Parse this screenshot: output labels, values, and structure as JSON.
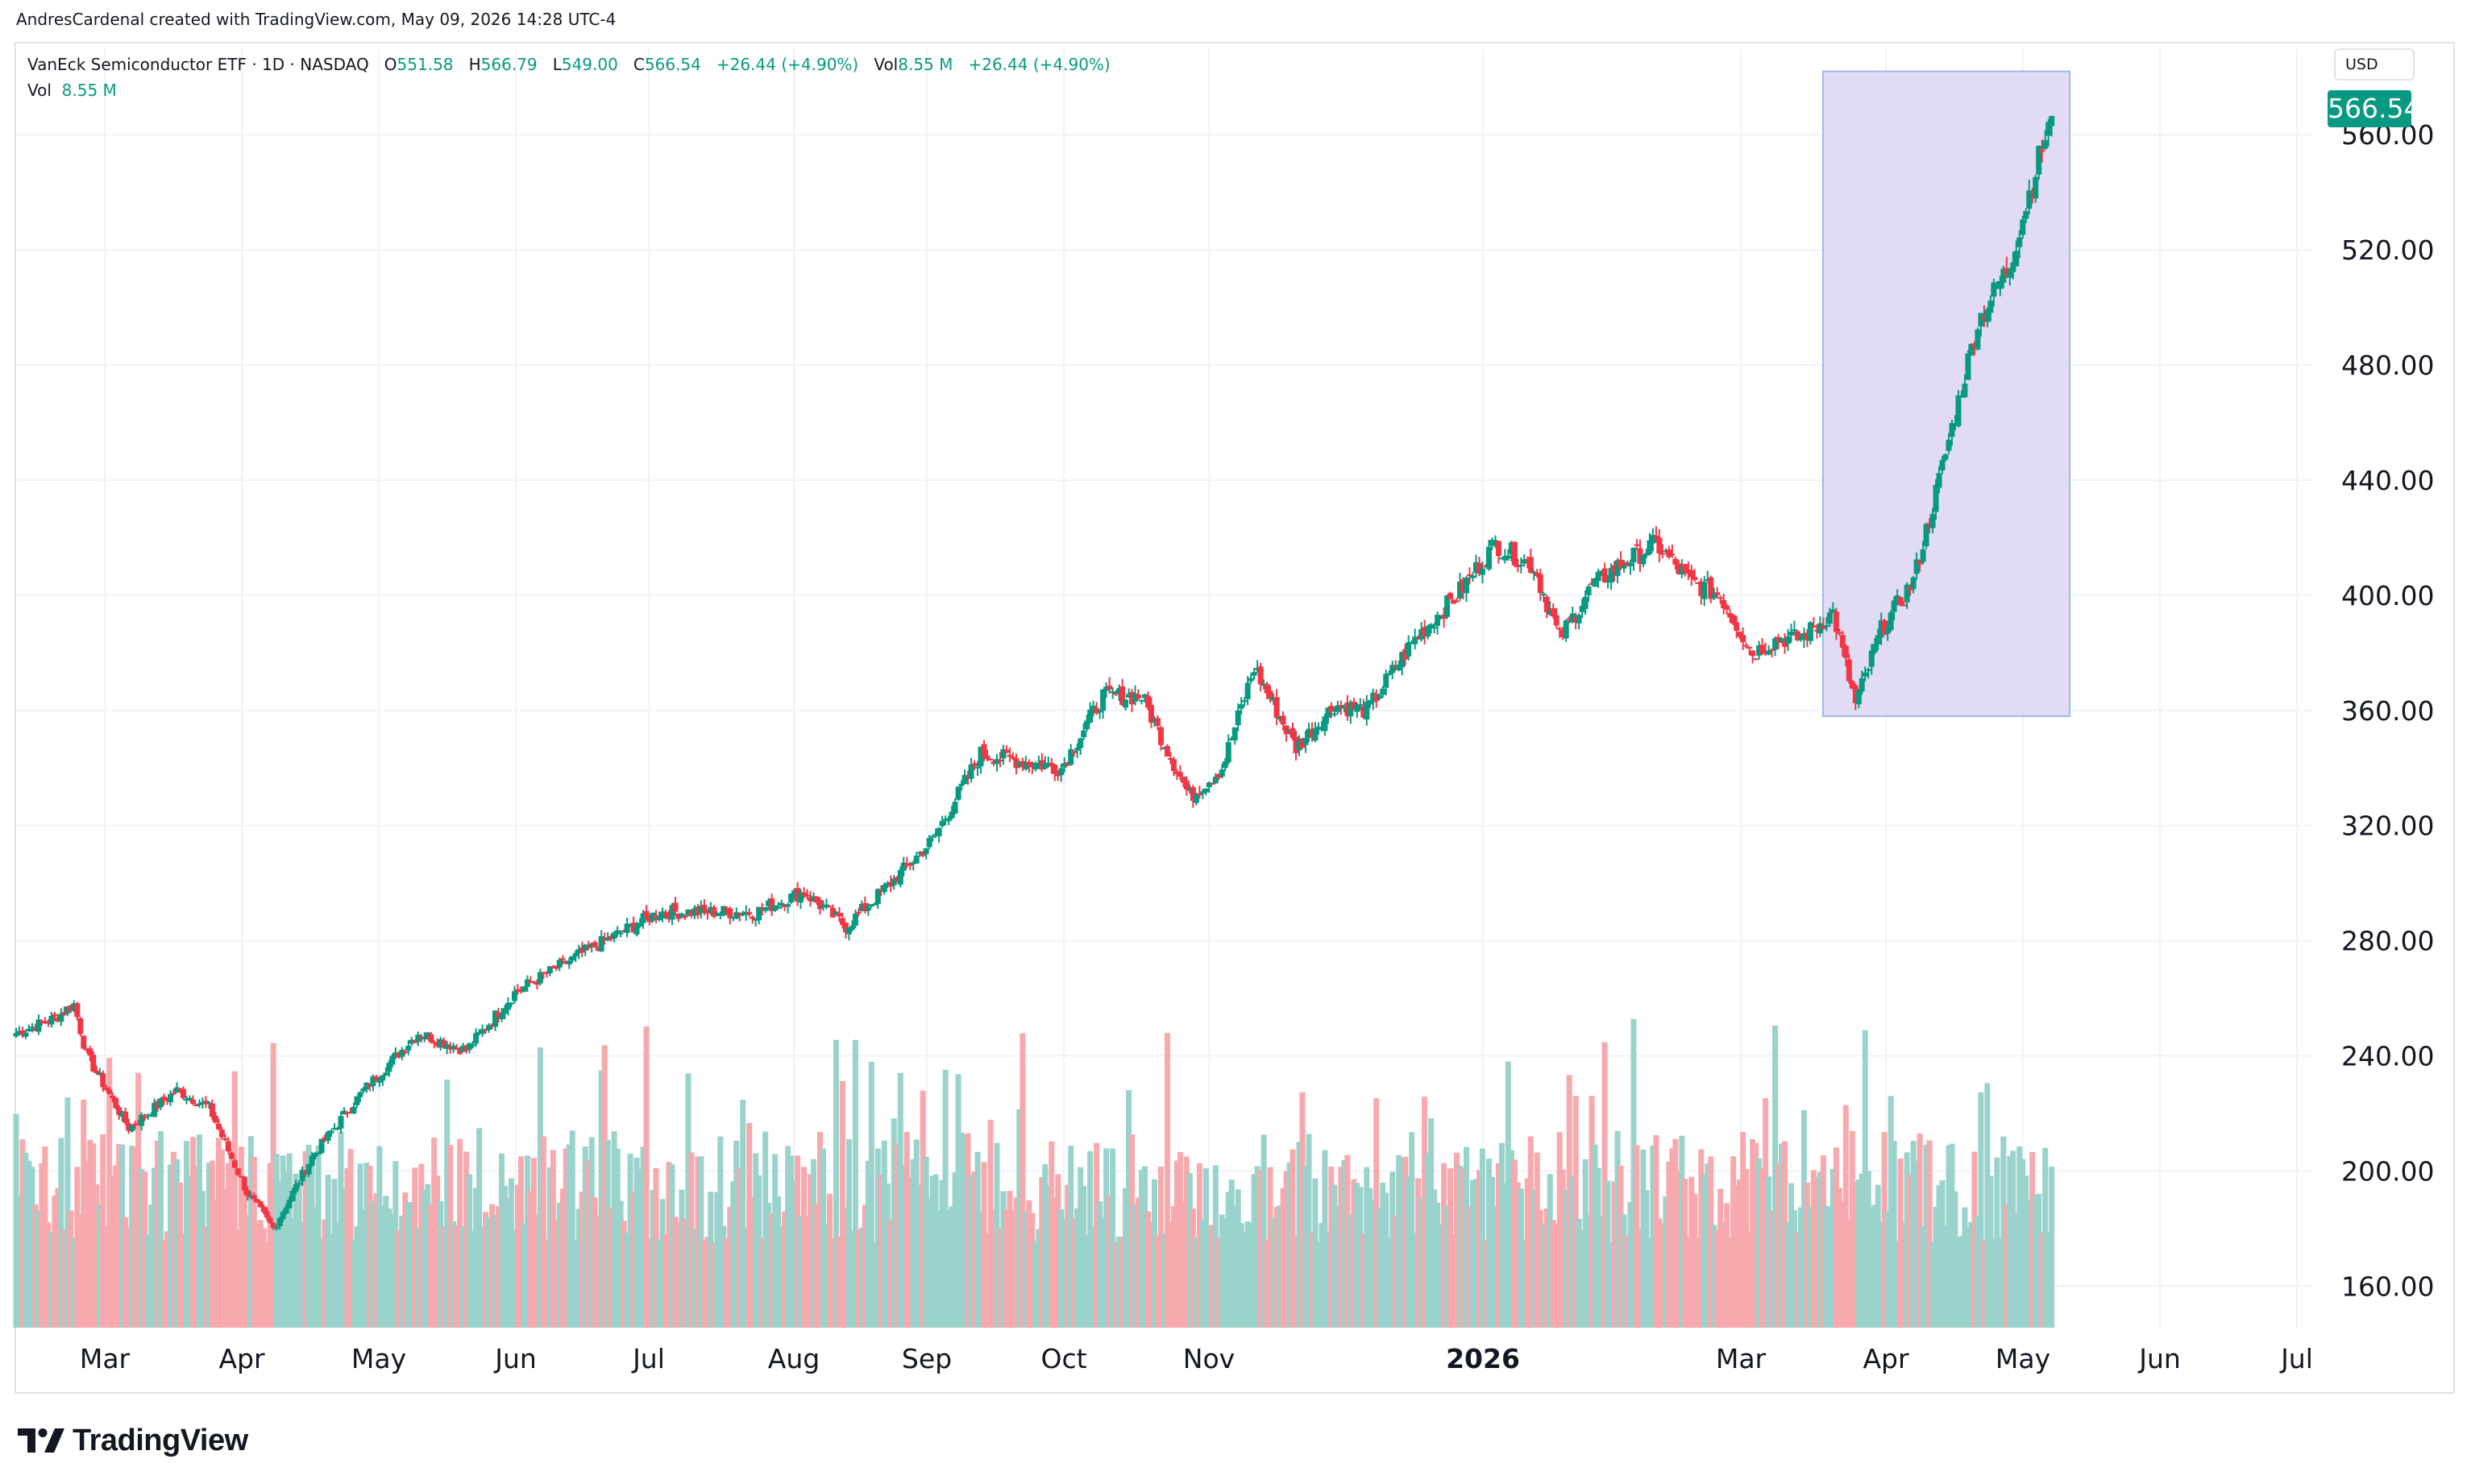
{
  "credit": "AndresCardenal created with TradingView.com, May 09, 2026 14:28 UTC-4",
  "legend": {
    "symbol": "VanEck Semiconductor ETF · 1D · NASDAQ",
    "o_label": "O",
    "o": "551.58",
    "h_label": "H",
    "h": "566.79",
    "l_label": "L",
    "l": "549.00",
    "c_label": "C",
    "c": "566.54",
    "change": "+26.44 (+4.90%)",
    "vol_label": "Vol",
    "vol": "8.55 M",
    "vol_change": "+26.44 (+4.90%)",
    "vol_row_label": "Vol",
    "vol_row_value": "8.55 M"
  },
  "currency": "USD",
  "last_price": "566.54",
  "brand": "TradingView",
  "colors": {
    "up": "#089981",
    "down": "#f23645",
    "up_vol": "#9ad3cc",
    "down_vol": "#f7a9ae",
    "highlight": "#dcd6f2"
  },
  "chart_data": {
    "type": "candlestick",
    "y_axis": {
      "min": 145,
      "max": 590,
      "ticks": [
        "160.00",
        "200.00",
        "240.00",
        "280.00",
        "320.00",
        "360.00",
        "400.00",
        "440.00",
        "480.00",
        "520.00",
        "560.00"
      ]
    },
    "x_ticks": [
      "Mar",
      "Apr",
      "May",
      "Jun",
      "Jul",
      "Aug",
      "Sep",
      "Oct",
      "Nov",
      "2026",
      "Mar",
      "Apr",
      "May",
      "Jun",
      "Jul"
    ],
    "x_tick_bold": [
      false,
      false,
      false,
      false,
      false,
      false,
      false,
      false,
      false,
      true,
      false,
      false,
      false,
      false,
      false
    ],
    "anchors": [
      [
        0,
        248
      ],
      [
        12,
        253
      ],
      [
        18,
        258
      ],
      [
        22,
        240
      ],
      [
        35,
        215
      ],
      [
        50,
        228
      ],
      [
        60,
        222
      ],
      [
        72,
        192
      ],
      [
        80,
        180
      ],
      [
        92,
        205
      ],
      [
        108,
        228
      ],
      [
        125,
        248
      ],
      [
        140,
        242
      ],
      [
        155,
        262
      ],
      [
        175,
        275
      ],
      [
        200,
        290
      ],
      [
        215,
        290
      ],
      [
        230,
        290
      ],
      [
        245,
        297
      ],
      [
        258,
        285
      ],
      [
        272,
        300
      ],
      [
        285,
        315
      ],
      [
        300,
        345
      ],
      [
        310,
        343
      ],
      [
        325,
        340
      ],
      [
        338,
        365
      ],
      [
        350,
        365
      ],
      [
        365,
        330
      ],
      [
        375,
        340
      ],
      [
        385,
        375
      ],
      [
        398,
        347
      ],
      [
        410,
        362
      ],
      [
        420,
        360
      ],
      [
        435,
        385
      ],
      [
        448,
        400
      ],
      [
        460,
        418
      ],
      [
        472,
        410
      ],
      [
        480,
        385
      ],
      [
        490,
        403
      ],
      [
        498,
        410
      ],
      [
        510,
        418
      ],
      [
        520,
        405
      ],
      [
        530,
        400
      ],
      [
        540,
        380
      ],
      [
        548,
        385
      ],
      [
        555,
        385
      ],
      [
        565,
        394
      ],
      [
        572,
        362
      ],
      [
        580,
        388
      ],
      [
        590,
        405
      ],
      [
        598,
        440
      ],
      [
        610,
        495
      ],
      [
        620,
        515
      ],
      [
        628,
        548
      ],
      [
        633,
        566.54
      ]
    ],
    "highlight": {
      "from_x": 553,
      "to_x": 637,
      "y_top": 582,
      "y_bottom": 358
    },
    "volume_axis_max": 12
  }
}
